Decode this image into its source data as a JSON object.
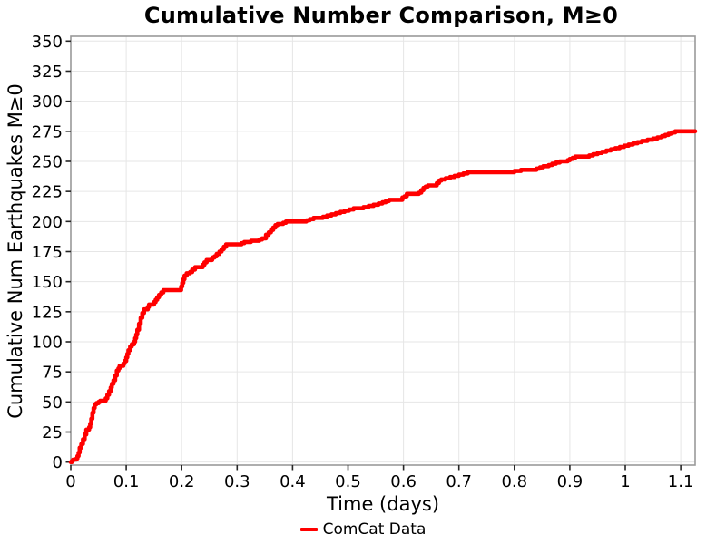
{
  "chart_data": {
    "type": "line",
    "step": "post",
    "title": "Cumulative Number Comparison, M≥0",
    "xlabel": "Time (days)",
    "ylabel": "Cumulative Num Earthquakes M≥0",
    "xlim": [
      0,
      1.126
    ],
    "ylim": [
      -2.5,
      354
    ],
    "grid": true,
    "legend_position": "bottom-center",
    "colors": {
      "line": "#ff0000",
      "grid": "#e6e6e6",
      "spine": "#999999",
      "tick": "#262626",
      "text": "#000000"
    },
    "xticks": [
      {
        "v": 0.0,
        "label": "0"
      },
      {
        "v": 0.1,
        "label": "0.1"
      },
      {
        "v": 0.2,
        "label": "0.2"
      },
      {
        "v": 0.3,
        "label": "0.3"
      },
      {
        "v": 0.4,
        "label": "0.4"
      },
      {
        "v": 0.5,
        "label": "0.5"
      },
      {
        "v": 0.6,
        "label": "0.6"
      },
      {
        "v": 0.7,
        "label": "0.7"
      },
      {
        "v": 0.8,
        "label": "0.8"
      },
      {
        "v": 0.9,
        "label": "0.9"
      },
      {
        "v": 1.0,
        "label": "1"
      },
      {
        "v": 1.1,
        "label": "1.1"
      }
    ],
    "yticks": [
      0,
      25,
      50,
      75,
      100,
      125,
      150,
      175,
      200,
      225,
      250,
      275,
      300,
      325,
      350
    ],
    "series": [
      {
        "name": "ComCat Data",
        "color": "#ff0000",
        "points": [
          [
            0,
            0
          ],
          [
            0.002,
            1
          ],
          [
            0.004,
            2
          ],
          [
            0.01,
            3
          ],
          [
            0.012,
            5
          ],
          [
            0.014,
            8
          ],
          [
            0.016,
            12
          ],
          [
            0.019,
            15
          ],
          [
            0.022,
            19
          ],
          [
            0.025,
            23
          ],
          [
            0.028,
            27
          ],
          [
            0.033,
            29
          ],
          [
            0.035,
            32
          ],
          [
            0.037,
            36
          ],
          [
            0.039,
            41
          ],
          [
            0.041,
            45
          ],
          [
            0.043,
            48
          ],
          [
            0.046,
            49
          ],
          [
            0.05,
            50
          ],
          [
            0.053,
            51
          ],
          [
            0.063,
            53
          ],
          [
            0.066,
            56
          ],
          [
            0.069,
            59
          ],
          [
            0.072,
            62
          ],
          [
            0.074,
            65
          ],
          [
            0.077,
            68
          ],
          [
            0.08,
            72
          ],
          [
            0.083,
            76
          ],
          [
            0.086,
            78
          ],
          [
            0.088,
            80
          ],
          [
            0.095,
            82
          ],
          [
            0.097,
            84
          ],
          [
            0.1,
            87
          ],
          [
            0.102,
            90
          ],
          [
            0.104,
            93
          ],
          [
            0.107,
            96
          ],
          [
            0.11,
            98
          ],
          [
            0.114,
            100
          ],
          [
            0.116,
            103
          ],
          [
            0.118,
            106
          ],
          [
            0.12,
            110
          ],
          [
            0.123,
            115
          ],
          [
            0.126,
            120
          ],
          [
            0.129,
            124
          ],
          [
            0.132,
            127
          ],
          [
            0.139,
            129
          ],
          [
            0.141,
            131
          ],
          [
            0.15,
            133
          ],
          [
            0.153,
            135
          ],
          [
            0.156,
            137
          ],
          [
            0.159,
            139
          ],
          [
            0.163,
            141
          ],
          [
            0.167,
            143
          ],
          [
            0.199,
            146
          ],
          [
            0.201,
            149
          ],
          [
            0.203,
            152
          ],
          [
            0.205,
            155
          ],
          [
            0.209,
            157
          ],
          [
            0.215,
            158
          ],
          [
            0.219,
            160
          ],
          [
            0.224,
            162
          ],
          [
            0.238,
            164
          ],
          [
            0.241,
            166
          ],
          [
            0.245,
            168
          ],
          [
            0.255,
            170
          ],
          [
            0.259,
            171
          ],
          [
            0.263,
            173
          ],
          [
            0.268,
            175
          ],
          [
            0.272,
            177
          ],
          [
            0.276,
            179
          ],
          [
            0.28,
            181
          ],
          [
            0.308,
            182
          ],
          [
            0.313,
            183
          ],
          [
            0.325,
            184
          ],
          [
            0.34,
            185
          ],
          [
            0.345,
            186
          ],
          [
            0.352,
            189
          ],
          [
            0.357,
            191
          ],
          [
            0.361,
            193
          ],
          [
            0.365,
            195
          ],
          [
            0.369,
            197
          ],
          [
            0.373,
            198
          ],
          [
            0.383,
            199
          ],
          [
            0.388,
            200
          ],
          [
            0.425,
            201
          ],
          [
            0.431,
            202
          ],
          [
            0.438,
            203
          ],
          [
            0.455,
            204
          ],
          [
            0.462,
            205
          ],
          [
            0.47,
            206
          ],
          [
            0.478,
            207
          ],
          [
            0.486,
            208
          ],
          [
            0.494,
            209
          ],
          [
            0.502,
            210
          ],
          [
            0.51,
            211
          ],
          [
            0.528,
            212
          ],
          [
            0.537,
            213
          ],
          [
            0.546,
            214
          ],
          [
            0.555,
            215
          ],
          [
            0.562,
            216
          ],
          [
            0.568,
            217
          ],
          [
            0.574,
            218
          ],
          [
            0.598,
            220
          ],
          [
            0.602,
            221
          ],
          [
            0.606,
            223
          ],
          [
            0.628,
            224
          ],
          [
            0.632,
            226
          ],
          [
            0.636,
            228
          ],
          [
            0.64,
            229
          ],
          [
            0.644,
            230
          ],
          [
            0.66,
            232
          ],
          [
            0.664,
            234
          ],
          [
            0.668,
            235
          ],
          [
            0.676,
            236
          ],
          [
            0.684,
            237
          ],
          [
            0.692,
            238
          ],
          [
            0.7,
            239
          ],
          [
            0.708,
            240
          ],
          [
            0.716,
            241
          ],
          [
            0.8,
            242
          ],
          [
            0.812,
            243
          ],
          [
            0.84,
            244
          ],
          [
            0.846,
            245
          ],
          [
            0.852,
            246
          ],
          [
            0.862,
            247
          ],
          [
            0.868,
            248
          ],
          [
            0.875,
            249
          ],
          [
            0.882,
            250
          ],
          [
            0.896,
            251
          ],
          [
            0.9,
            252
          ],
          [
            0.905,
            253
          ],
          [
            0.91,
            254
          ],
          [
            0.935,
            255
          ],
          [
            0.942,
            256
          ],
          [
            0.95,
            257
          ],
          [
            0.958,
            258
          ],
          [
            0.966,
            259
          ],
          [
            0.974,
            260
          ],
          [
            0.982,
            261
          ],
          [
            0.99,
            262
          ],
          [
            0.998,
            263
          ],
          [
            1.006,
            264
          ],
          [
            1.014,
            265
          ],
          [
            1.022,
            266
          ],
          [
            1.03,
            267
          ],
          [
            1.04,
            268
          ],
          [
            1.05,
            269
          ],
          [
            1.058,
            270
          ],
          [
            1.066,
            271
          ],
          [
            1.072,
            272
          ],
          [
            1.078,
            273
          ],
          [
            1.084,
            274
          ],
          [
            1.09,
            275
          ],
          [
            1.126,
            275
          ]
        ]
      }
    ]
  },
  "legend": {
    "items": [
      {
        "label": "ComCat Data",
        "color": "#ff0000"
      }
    ]
  }
}
